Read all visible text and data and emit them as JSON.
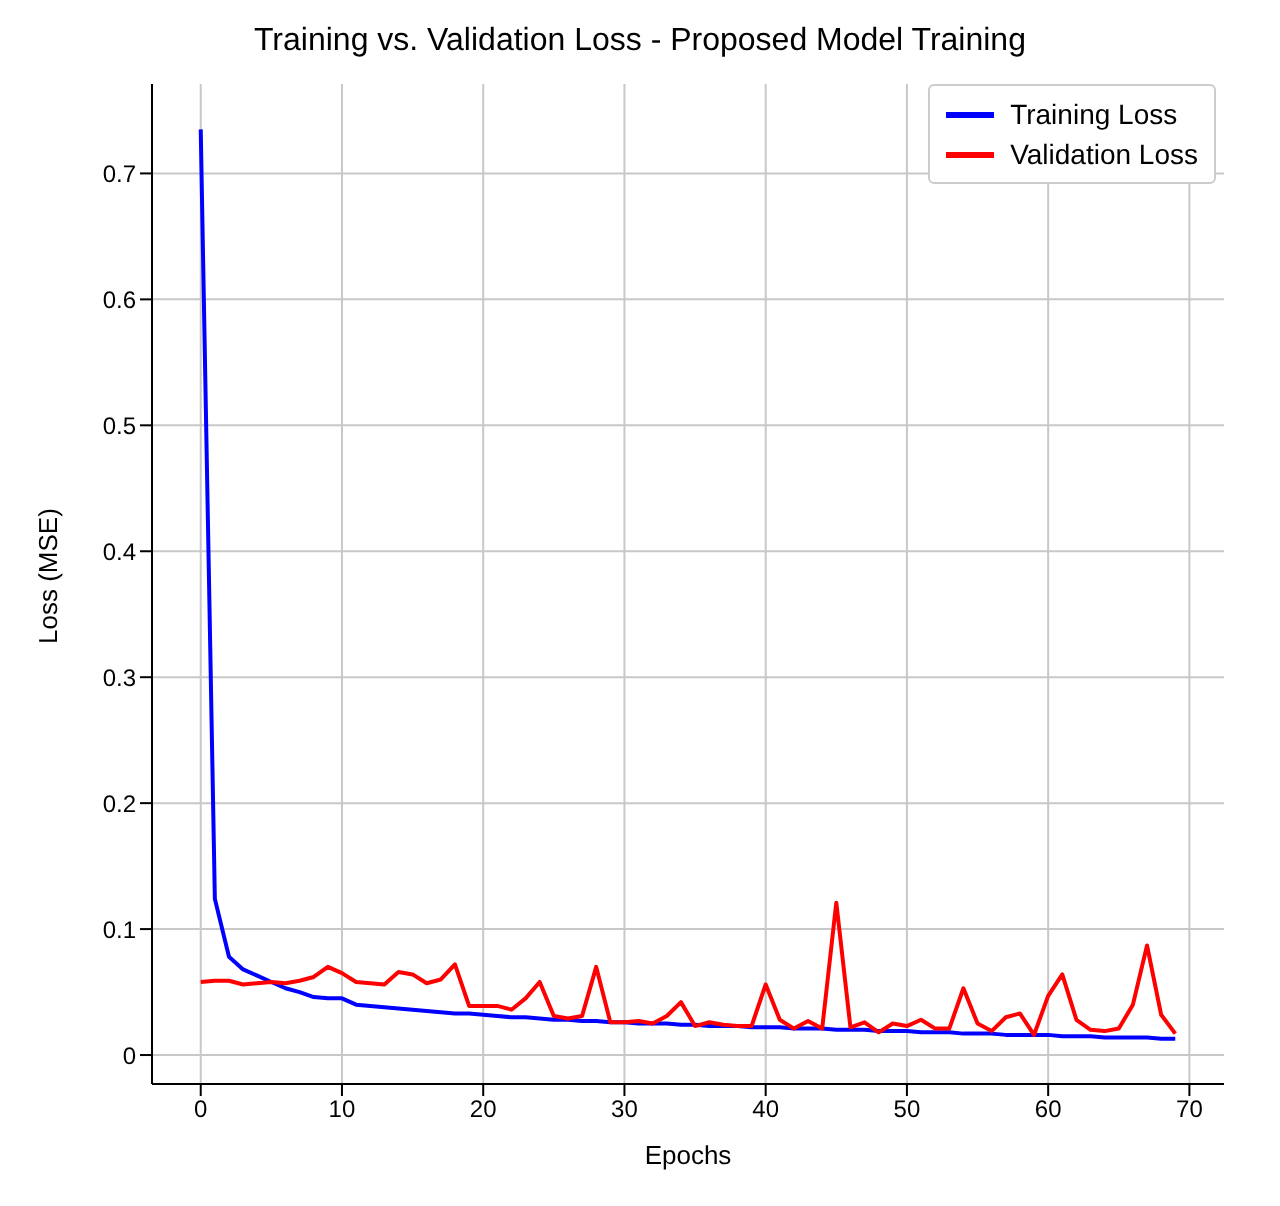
{
  "chart_data": {
    "type": "line",
    "title": "Training vs. Validation Loss - Proposed Model Training",
    "xlabel": "Epochs",
    "ylabel": "Loss (MSE)",
    "x": [
      0,
      1,
      2,
      3,
      4,
      5,
      6,
      7,
      8,
      9,
      10,
      11,
      12,
      13,
      14,
      15,
      16,
      17,
      18,
      19,
      20,
      21,
      22,
      23,
      24,
      25,
      26,
      27,
      28,
      29,
      30,
      31,
      32,
      33,
      34,
      35,
      36,
      37,
      38,
      39,
      40,
      41,
      42,
      43,
      44,
      45,
      46,
      47,
      48,
      49,
      50,
      51,
      52,
      53,
      54,
      55,
      56,
      57,
      58,
      59,
      60,
      61,
      62,
      63,
      64,
      65,
      66,
      67,
      68,
      69
    ],
    "series": [
      {
        "name": "Training Loss",
        "color": "#0000ff",
        "values": [
          0.735,
          0.124,
          0.078,
          0.068,
          0.063,
          0.058,
          0.053,
          0.05,
          0.046,
          0.045,
          0.045,
          0.04,
          0.039,
          0.038,
          0.037,
          0.036,
          0.035,
          0.034,
          0.033,
          0.033,
          0.032,
          0.031,
          0.03,
          0.03,
          0.029,
          0.028,
          0.028,
          0.027,
          0.027,
          0.026,
          0.026,
          0.025,
          0.025,
          0.025,
          0.024,
          0.024,
          0.023,
          0.023,
          0.023,
          0.022,
          0.022,
          0.022,
          0.021,
          0.021,
          0.021,
          0.02,
          0.02,
          0.02,
          0.019,
          0.019,
          0.019,
          0.018,
          0.018,
          0.018,
          0.017,
          0.017,
          0.017,
          0.016,
          0.016,
          0.016,
          0.016,
          0.015,
          0.015,
          0.015,
          0.014,
          0.014,
          0.014,
          0.014,
          0.013,
          0.013
        ]
      },
      {
        "name": "Validation Loss",
        "color": "#ff0000",
        "values": [
          0.058,
          0.059,
          0.059,
          0.056,
          0.057,
          0.058,
          0.057,
          0.059,
          0.062,
          0.07,
          0.065,
          0.058,
          0.057,
          0.056,
          0.066,
          0.064,
          0.057,
          0.06,
          0.072,
          0.039,
          0.039,
          0.039,
          0.036,
          0.045,
          0.058,
          0.031,
          0.029,
          0.031,
          0.07,
          0.026,
          0.026,
          0.027,
          0.025,
          0.031,
          0.042,
          0.023,
          0.026,
          0.024,
          0.023,
          0.023,
          0.056,
          0.028,
          0.021,
          0.027,
          0.021,
          0.121,
          0.022,
          0.026,
          0.018,
          0.025,
          0.023,
          0.028,
          0.021,
          0.021,
          0.053,
          0.025,
          0.019,
          0.03,
          0.033,
          0.016,
          0.047,
          0.064,
          0.028,
          0.02,
          0.019,
          0.021,
          0.04,
          0.087,
          0.032,
          0.017
        ]
      }
    ],
    "xlim": [
      -3.45,
      72.45
    ],
    "xticks": [
      0,
      10,
      20,
      30,
      40,
      50,
      60,
      70
    ],
    "ylim": [
      -0.023,
      0.771
    ],
    "yticks": [
      0,
      0.1,
      0.2,
      0.3,
      0.4,
      0.5,
      0.6,
      0.7
    ],
    "grid": true,
    "legend": "top right",
    "marker": "none",
    "line_style": "solid"
  }
}
